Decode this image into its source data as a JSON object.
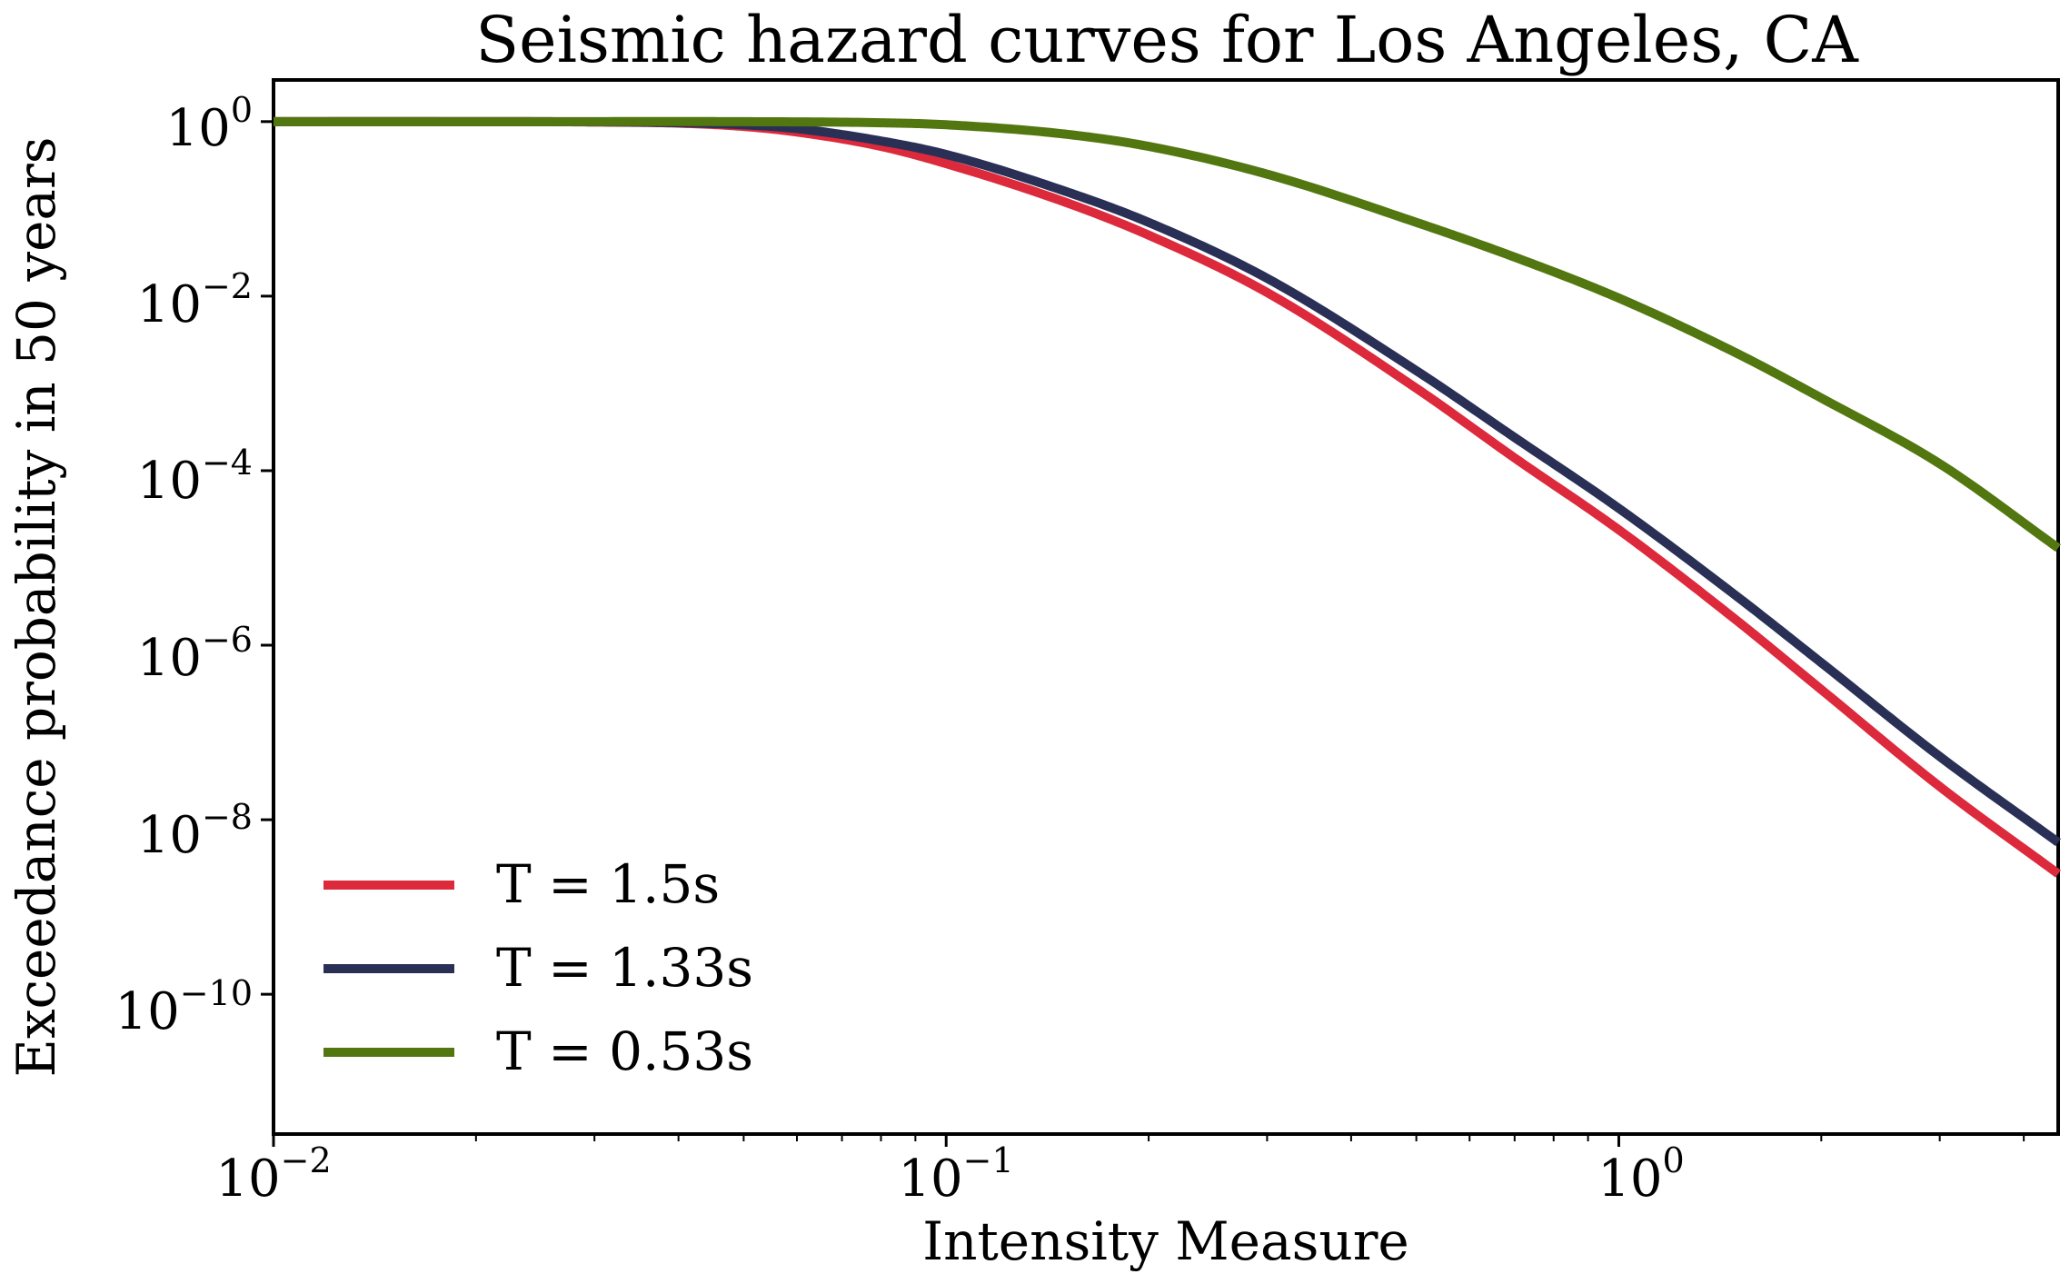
{
  "chart_data": {
    "type": "line",
    "title": "Seismic hazard curves for Los Angeles, CA",
    "xlabel": "Intensity Measure",
    "ylabel": "Exceedance probability in 50 years",
    "xscale": "log",
    "yscale": "log",
    "xlim": [
      0.01,
      4.5
    ],
    "ylim": [
      2.5e-12,
      3.0
    ],
    "x_ticks": [
      {
        "base": "10",
        "exp": "−2",
        "value": 0.01
      },
      {
        "base": "10",
        "exp": "−1",
        "value": 0.1
      },
      {
        "base": "10",
        "exp": "0",
        "value": 1
      }
    ],
    "y_ticks": [
      {
        "base": "10",
        "exp": "0",
        "value": 1
      },
      {
        "base": "10",
        "exp": "−2",
        "value": 0.01
      },
      {
        "base": "10",
        "exp": "−4",
        "value": 0.0001
      },
      {
        "base": "10",
        "exp": "−6",
        "value": 1e-06
      },
      {
        "base": "10",
        "exp": "−8",
        "value": 1e-08
      },
      {
        "base": "10",
        "exp": "−10",
        "value": 1e-10
      }
    ],
    "legend_position": "lower-left",
    "series": [
      {
        "name": "T = 1.5s",
        "color": "#dc2a3c",
        "x": [
          0.01,
          0.02,
          0.03,
          0.04,
          0.05,
          0.06,
          0.08,
          0.1,
          0.15,
          0.2,
          0.3,
          0.5,
          0.7,
          1.0,
          1.5,
          2.0,
          3.0,
          4.5
        ],
        "y": [
          1.0,
          0.999,
          0.99,
          0.96,
          0.88,
          0.76,
          0.52,
          0.33,
          0.12,
          0.05,
          0.011,
          0.00088,
          0.00014,
          2.1e-05,
          1.9e-06,
          3.1e-07,
          2.4e-08,
          2.4e-09
        ]
      },
      {
        "name": "T = 1.33s",
        "color": "#2a3055",
        "x": [
          0.01,
          0.02,
          0.03,
          0.04,
          0.05,
          0.06,
          0.08,
          0.1,
          0.15,
          0.2,
          0.3,
          0.5,
          0.7,
          1.0,
          1.5,
          2.0,
          3.0,
          4.5
        ],
        "y": [
          1.0,
          0.999,
          0.993,
          0.97,
          0.92,
          0.83,
          0.6,
          0.42,
          0.16,
          0.07,
          0.016,
          0.0014,
          0.00024,
          3.7e-05,
          3.6e-06,
          6.3e-07,
          5.3e-08,
          5.5e-09
        ]
      },
      {
        "name": "T = 0.53s",
        "color": "#527710",
        "x": [
          0.01,
          0.03,
          0.05,
          0.08,
          0.1,
          0.15,
          0.2,
          0.3,
          0.5,
          0.7,
          1.0,
          1.5,
          2.0,
          3.0,
          4.5
        ],
        "y": [
          1.0,
          1.0,
          0.998,
          0.97,
          0.92,
          0.72,
          0.52,
          0.25,
          0.07,
          0.028,
          0.0095,
          0.0022,
          0.00068,
          0.00012,
          1.3e-05
        ]
      }
    ]
  }
}
